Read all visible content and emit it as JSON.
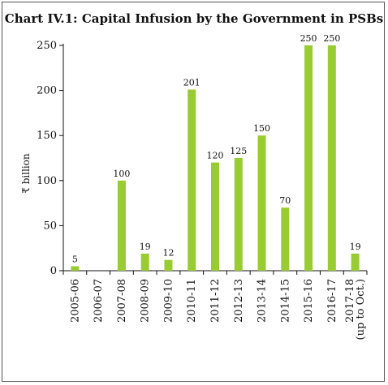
{
  "chart_data": {
    "type": "bar",
    "title": "Chart IV.1: Capital Infusion by the Government in PSBs",
    "xlabel": "",
    "ylabel": "₹ billion",
    "ylim": [
      0,
      250
    ],
    "yticks": [
      0,
      50,
      100,
      150,
      200,
      250
    ],
    "grid": false,
    "legend": "none",
    "bar_color": "#99cc33",
    "categories": [
      [
        "2005-06"
      ],
      [
        "2006-07"
      ],
      [
        "2007-08"
      ],
      [
        "2008-09"
      ],
      [
        "2009-10"
      ],
      [
        "2010-11"
      ],
      [
        "2011-12"
      ],
      [
        "2012-13"
      ],
      [
        "2013-14"
      ],
      [
        "2014-15"
      ],
      [
        "2015-16"
      ],
      [
        "2016-17"
      ],
      [
        "2017-18",
        "(up to Oct.)"
      ]
    ],
    "values": [
      5,
      null,
      100,
      19,
      12,
      201,
      120,
      125,
      150,
      70,
      250,
      250,
      19
    ],
    "data_labels": [
      "5",
      "",
      "100",
      "19",
      "12",
      "201",
      "120",
      "125",
      "150",
      "70",
      "250",
      "250",
      "19"
    ]
  }
}
